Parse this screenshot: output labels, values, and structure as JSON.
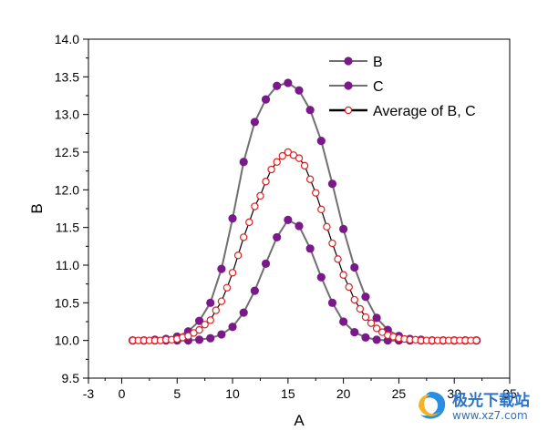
{
  "chart_data": {
    "type": "line",
    "xlabel": "A",
    "ylabel": "B",
    "xlim": [
      -3,
      35
    ],
    "ylim": [
      9.5,
      14.0
    ],
    "xticks": [
      -3,
      0,
      5,
      10,
      15,
      20,
      25,
      30,
      35
    ],
    "yticks": [
      9.5,
      10.0,
      10.5,
      11.0,
      11.5,
      12.0,
      12.5,
      13.0,
      13.5,
      14.0
    ],
    "grid": false,
    "legend_position": "top-right",
    "series": [
      {
        "name": "B",
        "color": "#7a1a8a",
        "line_color": "#707070",
        "marker": "filled-circle",
        "x": [
          1,
          2,
          3,
          4,
          5,
          6,
          7,
          8,
          9,
          10,
          11,
          12,
          13,
          14,
          15,
          16,
          17,
          18,
          19,
          20,
          21,
          22,
          23,
          24,
          25,
          26,
          27,
          28,
          29,
          30,
          31,
          32
        ],
        "y": [
          10.0,
          10.0,
          10.0,
          10.0,
          10.0,
          10.0,
          10.01,
          10.03,
          10.08,
          10.18,
          10.37,
          10.66,
          11.02,
          11.37,
          11.6,
          11.52,
          11.22,
          10.84,
          10.5,
          10.25,
          10.11,
          10.04,
          10.01,
          10.0,
          10.0,
          10.0,
          10.0,
          10.0,
          10.0,
          10.0,
          10.0,
          10.0
        ]
      },
      {
        "name": "C",
        "color": "#7a1a8a",
        "line_color": "#707070",
        "marker": "filled-circle",
        "x": [
          1,
          2,
          3,
          4,
          5,
          6,
          7,
          8,
          9,
          10,
          11,
          12,
          13,
          14,
          15,
          16,
          17,
          18,
          19,
          20,
          21,
          22,
          23,
          24,
          25,
          26,
          27,
          28,
          29,
          30,
          31,
          32
        ],
        "y": [
          10.0,
          10.0,
          10.01,
          10.02,
          10.05,
          10.12,
          10.26,
          10.5,
          10.95,
          11.62,
          12.37,
          12.9,
          13.2,
          13.38,
          13.42,
          13.32,
          13.06,
          12.65,
          12.08,
          11.48,
          10.97,
          10.58,
          10.3,
          10.14,
          10.06,
          10.02,
          10.01,
          10.0,
          10.0,
          10.0,
          10.0,
          10.0
        ]
      },
      {
        "name": "Average of B, C",
        "color": "#e02020",
        "line_color": "#000000",
        "marker": "hollow-circle",
        "x": [
          1.0,
          1.5,
          2.0,
          2.5,
          3.0,
          3.5,
          4.0,
          4.5,
          5.0,
          5.5,
          6.0,
          6.5,
          7.0,
          7.5,
          8.0,
          8.5,
          9.0,
          9.5,
          10.0,
          10.5,
          11.0,
          11.5,
          12.0,
          12.5,
          13.0,
          13.5,
          14.0,
          14.5,
          15.0,
          15.5,
          16.0,
          16.5,
          17.0,
          17.5,
          18.0,
          18.5,
          19.0,
          19.5,
          20.0,
          20.5,
          21.0,
          21.5,
          22.0,
          22.5,
          23.0,
          23.5,
          24.0,
          24.5,
          25.0,
          25.5,
          26.0,
          26.5,
          27.0,
          27.5,
          28.0,
          28.5,
          29.0,
          29.5,
          30.0,
          30.5,
          31.0,
          31.5,
          32.0
        ],
        "y": [
          10.0,
          10.0,
          10.0,
          10.0,
          10.0,
          10.0,
          10.01,
          10.01,
          10.02,
          10.04,
          10.06,
          10.1,
          10.14,
          10.21,
          10.27,
          10.4,
          10.52,
          10.7,
          10.9,
          11.13,
          11.37,
          11.57,
          11.78,
          11.92,
          12.11,
          12.27,
          12.37,
          12.45,
          12.5,
          12.46,
          12.42,
          12.32,
          12.14,
          11.96,
          11.74,
          11.51,
          11.29,
          11.08,
          10.87,
          10.71,
          10.54,
          10.42,
          10.31,
          10.23,
          10.16,
          10.11,
          10.07,
          10.05,
          10.03,
          10.02,
          10.01,
          10.01,
          10.0,
          10.0,
          10.0,
          10.0,
          10.0,
          10.0,
          10.0,
          10.0,
          10.0,
          10.0,
          10.0
        ]
      }
    ]
  },
  "watermark": {
    "brand": "极光下载站",
    "url": "www.xz7.com",
    "logo_icon": "swirl-logo-icon"
  }
}
